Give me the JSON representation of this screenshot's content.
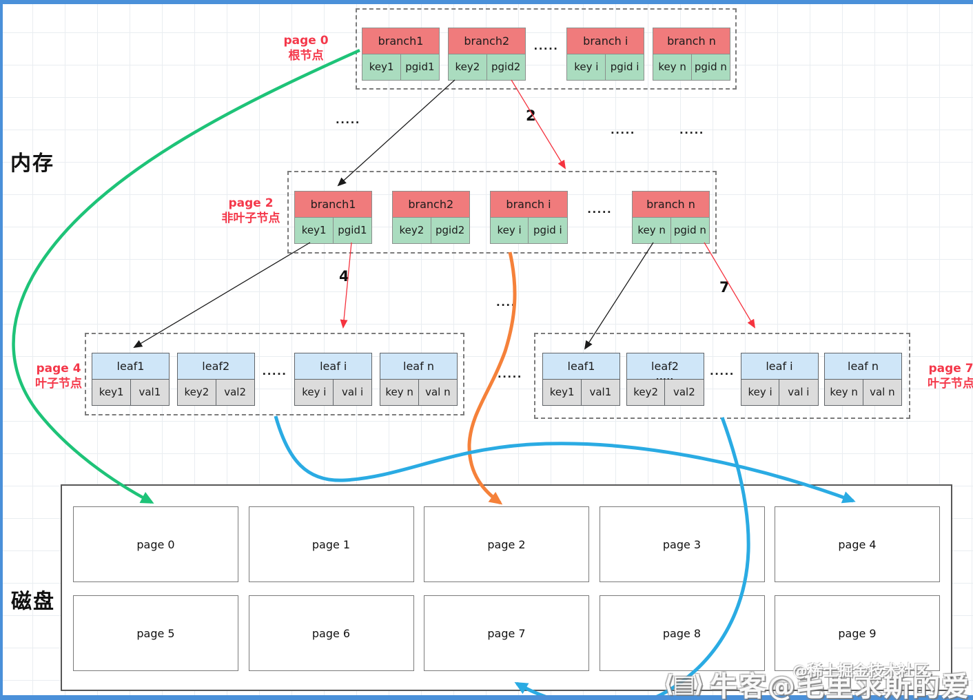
{
  "memory_label": "内存",
  "dots": ".....",
  "dots_short": "....",
  "edge_labels": [
    "2",
    "4",
    "7"
  ],
  "colors": {
    "frame": "#4a90d9",
    "branch_header": "#f07b7c",
    "branch_cell": "#aadcbf",
    "leaf_header": "#cfe6f8",
    "leaf_cell": "#dcdcdc",
    "red_label": "#f4384a",
    "green_arrow": "#1ec378",
    "orange_arrow": "#f5813a",
    "blue_arrow": "#2aabe3",
    "red_arrow": "#f5333f"
  },
  "sections": [
    {
      "id": "sec-root",
      "kind": "branch",
      "label_lines": [
        "page 0",
        "根节点"
      ],
      "items": [
        {
          "type": "card",
          "title": "branch1",
          "cells": [
            "key1",
            "pgid1"
          ]
        },
        {
          "type": "card",
          "title": "branch2",
          "cells": [
            "key2",
            "pgid2"
          ]
        },
        {
          "type": "dots"
        },
        {
          "type": "card",
          "title": "branch i",
          "cells": [
            "key i",
            "pgid i"
          ]
        },
        {
          "type": "card",
          "title": "branch n",
          "cells": [
            "key n",
            "pgid n"
          ]
        }
      ]
    },
    {
      "id": "sec-mid",
      "kind": "branch",
      "label_lines": [
        "page 2",
        "非叶子节点"
      ],
      "items": [
        {
          "type": "card",
          "title": "branch1",
          "cells": [
            "key1",
            "pgid1"
          ]
        },
        {
          "type": "card",
          "title": "branch2",
          "cells": [
            "key2",
            "pgid2"
          ]
        },
        {
          "type": "card",
          "title": "branch i",
          "cells": [
            "key i",
            "pgid i"
          ]
        },
        {
          "type": "dots"
        },
        {
          "type": "card",
          "title": "branch n",
          "cells": [
            "key n",
            "pgid n"
          ]
        }
      ]
    },
    {
      "id": "sec-leaf-l",
      "kind": "leaf",
      "label_lines": [
        "page 4",
        "叶子节点"
      ],
      "items": [
        {
          "type": "card",
          "title": "leaf1",
          "cells": [
            "key1",
            "val1"
          ]
        },
        {
          "type": "card",
          "title": "leaf2",
          "cells": [
            "key2",
            "val2"
          ]
        },
        {
          "type": "dots"
        },
        {
          "type": "card",
          "title": "leaf i",
          "cells": [
            "key i",
            "val i"
          ]
        },
        {
          "type": "card",
          "title": "leaf n",
          "cells": [
            "key n",
            "val n"
          ]
        }
      ]
    },
    {
      "id": "sec-leaf-r",
      "kind": "leaf",
      "label_lines": [
        "page 7",
        "叶子节点"
      ],
      "items": [
        {
          "type": "card",
          "title": "leaf1",
          "cells": [
            "key1",
            "val1"
          ]
        },
        {
          "type": "card",
          "title": "leaf2",
          "cells": [
            "key2",
            "val2"
          ],
          "overlay_dots": true
        },
        {
          "type": "dots"
        },
        {
          "type": "card",
          "title": "leaf i",
          "cells": [
            "key i",
            "val i"
          ]
        },
        {
          "type": "card",
          "title": "leaf n",
          "cells": [
            "key n",
            "val n"
          ]
        }
      ]
    }
  ],
  "disk": {
    "label": "磁盘",
    "pages": [
      "page 0",
      "page 1",
      "page 2",
      "page 3",
      "page 4",
      "page 5",
      "page 6",
      "page 7",
      "page 8",
      "page 9"
    ]
  },
  "watermark": {
    "logo": "⟨▤⟩",
    "text": "牛客@毛里求斯的爱",
    "overlay": "@稀土掘金技术社区"
  }
}
